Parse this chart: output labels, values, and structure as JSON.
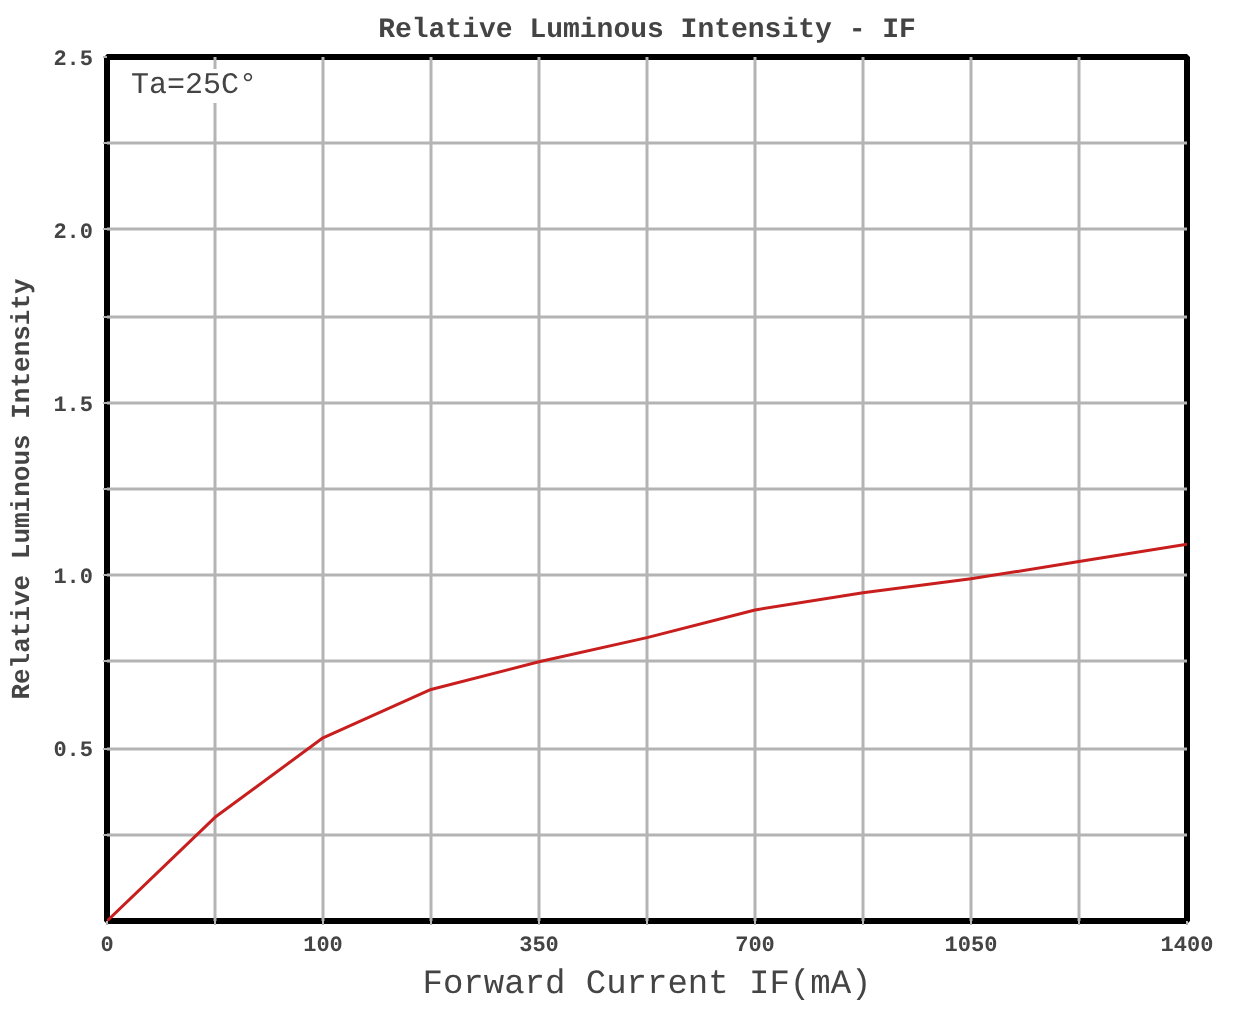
{
  "chart_data": {
    "type": "line",
    "title": "Relative Luminous Intensity - IF",
    "xlabel": "Forward Current IF(mA)",
    "ylabel": "Relative Luminous Intensity",
    "annotations": [
      "Ta=25C°"
    ],
    "categories": [
      "0",
      null,
      "100",
      null,
      "350",
      null,
      "700",
      null,
      "1050",
      null,
      "1400"
    ],
    "series": [
      {
        "color": "#c81e1e",
        "values": [
          0,
          0.3,
          0.53,
          0.67,
          0.75,
          0.82,
          0.9,
          0.95,
          0.99,
          1.04,
          1.09
        ]
      }
    ],
    "ylim": [
      0,
      2.5
    ],
    "yticks": [
      {
        "value": 0.25,
        "label": null
      },
      {
        "value": 0.5,
        "label": "0.5"
      },
      {
        "value": 0.75,
        "label": null
      },
      {
        "value": 1.0,
        "label": "1.0"
      },
      {
        "value": 1.25,
        "label": null
      },
      {
        "value": 1.5,
        "label": "1.5"
      },
      {
        "value": 1.75,
        "label": null
      },
      {
        "value": 2.0,
        "label": "2.0"
      },
      {
        "value": 2.25,
        "label": null
      },
      {
        "value": 2.5,
        "label": "2.5"
      }
    ],
    "grid": true,
    "line_style": "solid",
    "marker": "none"
  }
}
